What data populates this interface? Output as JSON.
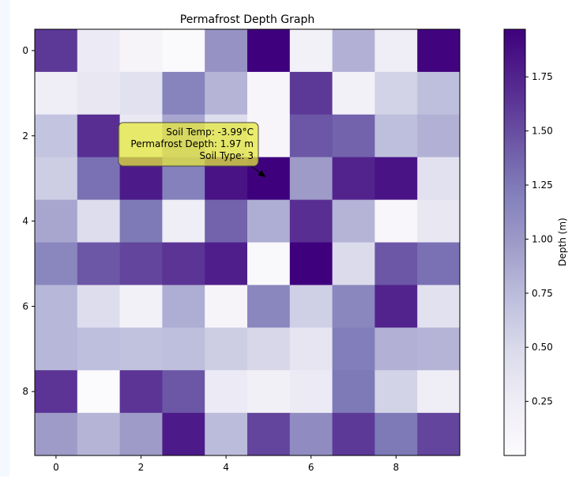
{
  "chart_data": {
    "type": "heatmap",
    "title": "Permafrost Depth Graph",
    "xlabel": "",
    "ylabel": "",
    "colormap": "Purples",
    "x_ticks": [
      0,
      2,
      4,
      6,
      8
    ],
    "y_ticks": [
      0,
      2,
      4,
      6,
      8
    ],
    "xlim": [
      -0.5,
      9.5
    ],
    "ylim": [
      9.5,
      -0.5
    ],
    "values": [
      [
        1.62,
        0.28,
        0.12,
        0.04,
        1.05,
        1.97,
        0.18,
        0.82,
        0.25,
        1.95
      ],
      [
        0.25,
        0.32,
        0.4,
        1.18,
        0.8,
        0.1,
        1.62,
        0.18,
        0.55,
        0.72
      ],
      [
        0.68,
        1.68,
        0.3,
        0.9,
        0.45,
        0.1,
        1.45,
        1.38,
        0.72,
        0.82
      ],
      [
        0.6,
        1.3,
        1.8,
        1.2,
        1.85,
        1.97,
        0.98,
        1.75,
        1.85,
        0.4
      ],
      [
        0.9,
        0.45,
        1.25,
        0.25,
        1.38,
        0.85,
        1.68,
        0.8,
        0.08,
        0.32
      ],
      [
        1.15,
        1.45,
        1.55,
        1.65,
        1.78,
        0.06,
        1.97,
        0.48,
        1.45,
        1.3
      ],
      [
        0.78,
        0.45,
        0.18,
        0.85,
        0.12,
        1.15,
        0.58,
        1.15,
        1.75,
        0.4
      ],
      [
        0.78,
        0.72,
        0.7,
        0.72,
        0.6,
        0.52,
        0.35,
        1.22,
        0.82,
        0.8
      ],
      [
        1.65,
        0.02,
        1.65,
        1.45,
        0.28,
        0.2,
        0.28,
        1.25,
        0.55,
        0.25
      ],
      [
        0.98,
        0.8,
        0.98,
        1.8,
        0.75,
        1.55,
        1.1,
        1.62,
        1.25,
        1.55
      ]
    ],
    "colorbar": {
      "label": "Depth (m)",
      "range": [
        0.0,
        1.97
      ],
      "ticks": [
        0.25,
        0.5,
        0.75,
        1.0,
        1.25,
        1.5,
        1.75
      ],
      "tick_labels": [
        "0.25",
        "0.50",
        "0.75",
        "1.00",
        "1.25",
        "1.50",
        "1.75"
      ]
    },
    "annotation": {
      "lines": [
        "Soil Temp: -3.99°C",
        "Permafrost Depth: 1.97 m",
        "Soil Type: 3"
      ],
      "target": [
        5,
        3
      ],
      "box_color": "#e6e83c"
    },
    "grid": false
  }
}
